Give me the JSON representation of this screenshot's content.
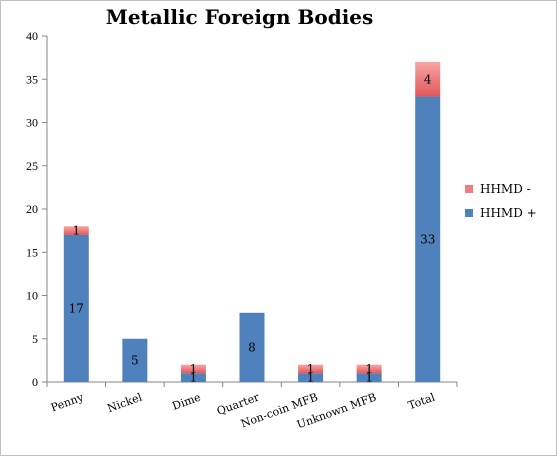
{
  "chart_data": {
    "type": "bar",
    "stacked": true,
    "title": "Metallic Foreign Bodies",
    "categories": [
      "Penny",
      "Nickel",
      "Dime",
      "Quarter",
      "Non-coin MFB",
      "Unknown MFB",
      "Total"
    ],
    "series": [
      {
        "name": "HHMD +",
        "color": "#4f81bd",
        "values": [
          17,
          5,
          1,
          8,
          1,
          1,
          33
        ],
        "labels": [
          "17",
          "5",
          "1",
          "8",
          "1",
          "1",
          "33"
        ]
      },
      {
        "name": "HHMD -",
        "color": "#f07c7c",
        "values": [
          1,
          0,
          1,
          0,
          1,
          1,
          4
        ],
        "labels": [
          "1",
          "",
          "1",
          "",
          "1",
          "1",
          "4"
        ]
      }
    ],
    "ylim": [
      0,
      40
    ],
    "yticks": [
      0,
      5,
      10,
      15,
      20,
      25,
      30,
      35,
      40
    ],
    "grid": false,
    "legend_position": "right"
  }
}
